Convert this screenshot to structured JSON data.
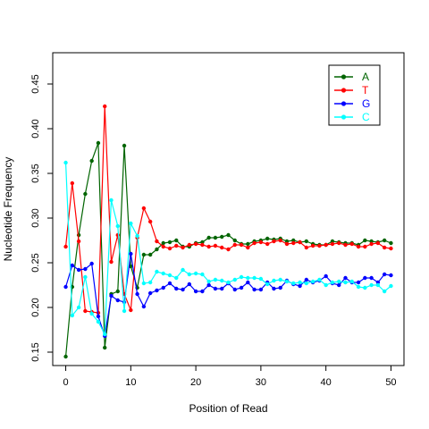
{
  "chart_data": {
    "type": "line",
    "title": "",
    "xlabel": "Position of Read",
    "ylabel": "Nucleotide Frequency",
    "xlim": [
      -2,
      52
    ],
    "ylim": [
      0.135,
      0.485
    ],
    "xticks": [
      0,
      10,
      20,
      30,
      40,
      50
    ],
    "xtick_labels": [
      "0",
      "10",
      "20",
      "30",
      "40",
      "50"
    ],
    "yticks": [
      0.15,
      0.2,
      0.25,
      0.3,
      0.35,
      0.4,
      0.45
    ],
    "ytick_labels": [
      "0.15",
      "0.20",
      "0.25",
      "0.30",
      "0.35",
      "0.40",
      "0.45"
    ],
    "grid": false,
    "legend_position": "top-right",
    "x": [
      0,
      1,
      2,
      3,
      4,
      5,
      6,
      7,
      8,
      9,
      10,
      11,
      12,
      13,
      14,
      15,
      16,
      17,
      18,
      19,
      20,
      21,
      22,
      23,
      24,
      25,
      26,
      27,
      28,
      29,
      30,
      31,
      32,
      33,
      34,
      35,
      36,
      37,
      38,
      39,
      40,
      41,
      42,
      43,
      44,
      45,
      46,
      47,
      48,
      49,
      50
    ],
    "series": [
      {
        "name": "A",
        "color": "#006400",
        "values": [
          0.145,
          0.223,
          0.281,
          0.327,
          0.364,
          0.384,
          0.155,
          0.215,
          0.218,
          0.381,
          0.246,
          0.222,
          0.259,
          0.259,
          0.265,
          0.272,
          0.273,
          0.275,
          0.268,
          0.268,
          0.272,
          0.273,
          0.278,
          0.278,
          0.279,
          0.281,
          0.275,
          0.271,
          0.271,
          0.274,
          0.275,
          0.277,
          0.276,
          0.277,
          0.274,
          0.275,
          0.273,
          0.274,
          0.271,
          0.27,
          0.27,
          0.274,
          0.273,
          0.272,
          0.272,
          0.27,
          0.275,
          0.274,
          0.273,
          0.275,
          0.272
        ]
      },
      {
        "name": "T",
        "color": "#ff0000",
        "values": [
          0.268,
          0.339,
          0.274,
          0.196,
          0.195,
          0.194,
          0.425,
          0.251,
          0.281,
          0.215,
          0.197,
          0.278,
          0.311,
          0.296,
          0.274,
          0.268,
          0.266,
          0.269,
          0.267,
          0.27,
          0.271,
          0.27,
          0.268,
          0.269,
          0.267,
          0.265,
          0.27,
          0.27,
          0.267,
          0.272,
          0.273,
          0.271,
          0.274,
          0.275,
          0.271,
          0.272,
          0.273,
          0.267,
          0.269,
          0.269,
          0.27,
          0.271,
          0.272,
          0.27,
          0.271,
          0.268,
          0.268,
          0.271,
          0.272,
          0.267,
          0.266
        ]
      },
      {
        "name": "G",
        "color": "#0000ff",
        "values": [
          0.223,
          0.247,
          0.242,
          0.243,
          0.249,
          0.19,
          0.168,
          0.213,
          0.208,
          0.206,
          0.26,
          0.215,
          0.201,
          0.216,
          0.219,
          0.222,
          0.227,
          0.221,
          0.22,
          0.226,
          0.218,
          0.218,
          0.225,
          0.221,
          0.221,
          0.227,
          0.22,
          0.222,
          0.228,
          0.22,
          0.22,
          0.228,
          0.221,
          0.222,
          0.23,
          0.226,
          0.224,
          0.231,
          0.228,
          0.23,
          0.235,
          0.227,
          0.225,
          0.233,
          0.228,
          0.228,
          0.233,
          0.233,
          0.228,
          0.237,
          0.236
        ]
      },
      {
        "name": "C",
        "color": "#00ffff",
        "values": [
          0.362,
          0.191,
          0.2,
          0.234,
          0.193,
          0.184,
          0.17,
          0.32,
          0.291,
          0.196,
          0.294,
          0.28,
          0.227,
          0.228,
          0.24,
          0.238,
          0.236,
          0.233,
          0.242,
          0.237,
          0.238,
          0.237,
          0.229,
          0.231,
          0.23,
          0.228,
          0.231,
          0.234,
          0.233,
          0.233,
          0.232,
          0.226,
          0.23,
          0.231,
          0.229,
          0.227,
          0.228,
          0.227,
          0.229,
          0.231,
          0.225,
          0.228,
          0.229,
          0.228,
          0.229,
          0.223,
          0.222,
          0.225,
          0.225,
          0.218,
          0.224
        ]
      }
    ]
  }
}
